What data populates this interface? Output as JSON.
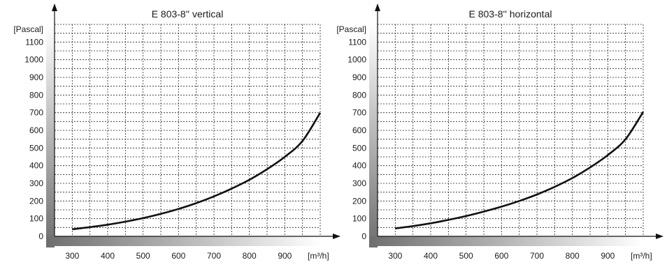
{
  "chart_data": [
    {
      "type": "line",
      "title": "E 803-8'' vertical",
      "ylabel": "[Pascal]",
      "xlabel": "[m³/h]",
      "xticks": [
        300,
        400,
        500,
        600,
        700,
        800,
        900
      ],
      "yticks": [
        0,
        100,
        200,
        300,
        400,
        500,
        600,
        700,
        800,
        900,
        1000,
        1100
      ],
      "xlim": [
        250,
        1000
      ],
      "ylim": [
        0,
        1200
      ],
      "series": [
        {
          "x": [
            300,
            350,
            400,
            450,
            500,
            550,
            600,
            650,
            700,
            750,
            800,
            850,
            900,
            950,
            1000
          ],
          "values": [
            40,
            52,
            66,
            83,
            103,
            127,
            155,
            188,
            226,
            270,
            320,
            380,
            450,
            540,
            700
          ]
        }
      ]
    },
    {
      "type": "line",
      "title": "E 803-8'' horizontal",
      "ylabel": "[Pascal]",
      "xlabel": "[m³/h]",
      "xticks": [
        300,
        400,
        500,
        600,
        700,
        800,
        900
      ],
      "yticks": [
        0,
        100,
        200,
        300,
        400,
        500,
        600,
        700,
        800,
        900,
        1000,
        1100
      ],
      "xlim": [
        250,
        1000
      ],
      "ylim": [
        0,
        1200
      ],
      "series": [
        {
          "x": [
            300,
            350,
            400,
            450,
            500,
            550,
            600,
            650,
            700,
            750,
            800,
            850,
            900,
            950,
            1000
          ],
          "values": [
            45,
            58,
            74,
            93,
            115,
            140,
            168,
            200,
            237,
            280,
            330,
            390,
            460,
            550,
            705
          ]
        }
      ]
    }
  ]
}
